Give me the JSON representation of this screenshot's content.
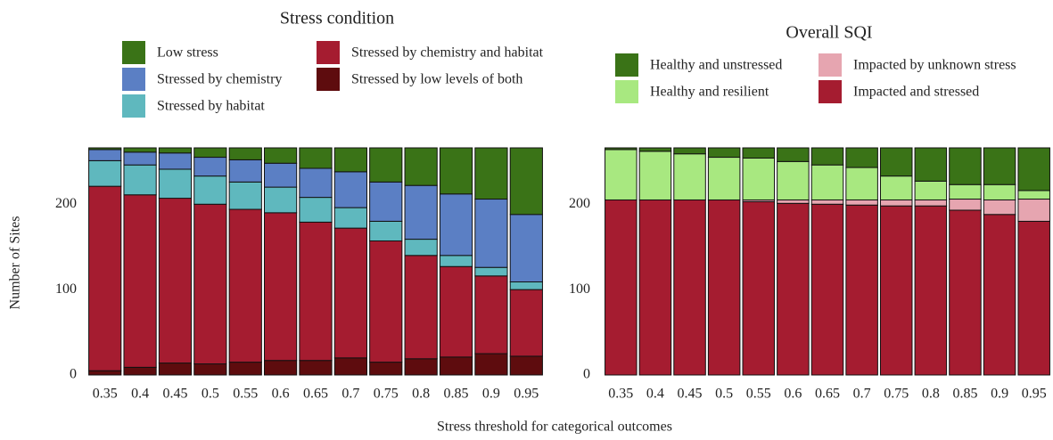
{
  "chart_data": [
    {
      "type": "stacked_bar",
      "legend_title": "Stress condition",
      "ylabel": "Number of Sites",
      "xlabel": "Stress threshold for categorical outcomes",
      "categories": [
        "0.35",
        "0.4",
        "0.45",
        "0.5",
        "0.55",
        "0.6",
        "0.65",
        "0.7",
        "0.75",
        "0.8",
        "0.85",
        "0.9",
        "0.95"
      ],
      "series": [
        {
          "name": "Low stress",
          "color": "#3a7317",
          "values": [
            2,
            5,
            6,
            11,
            14,
            18,
            24,
            28,
            40,
            44,
            54,
            60,
            78
          ]
        },
        {
          "name": "Stressed by chemistry",
          "color": "#5b7fc4",
          "values": [
            13,
            15,
            19,
            22,
            26,
            28,
            34,
            42,
            46,
            63,
            72,
            80,
            79
          ]
        },
        {
          "name": "Stressed by habitat",
          "color": "#5fb8be",
          "values": [
            30,
            35,
            34,
            33,
            32,
            30,
            29,
            24,
            23,
            19,
            13,
            10,
            9
          ]
        },
        {
          "name": "Stressed by chemistry and habitat",
          "color": "#a51c30",
          "values": [
            216,
            202,
            193,
            187,
            179,
            173,
            162,
            152,
            142,
            121,
            106,
            91,
            78
          ]
        },
        {
          "name": "Stressed by low levels of both",
          "color": "#5e0c0e",
          "values": [
            5,
            9,
            14,
            13,
            15,
            17,
            17,
            20,
            15,
            19,
            21,
            25,
            22
          ]
        }
      ],
      "ylim": [
        0,
        266
      ],
      "yticks": [
        0,
        100,
        200
      ]
    },
    {
      "type": "stacked_bar",
      "legend_title": "Overall SQI",
      "categories": [
        "0.35",
        "0.4",
        "0.45",
        "0.5",
        "0.55",
        "0.6",
        "0.65",
        "0.7",
        "0.75",
        "0.8",
        "0.85",
        "0.9",
        "0.95"
      ],
      "series": [
        {
          "name": "Healthy and unstressed",
          "color": "#3a7317",
          "values": [
            2,
            4,
            7,
            11,
            12,
            16,
            20,
            23,
            33,
            39,
            43,
            43,
            50
          ]
        },
        {
          "name": "Healthy and resilient",
          "color": "#a8e880",
          "values": [
            59,
            57,
            54,
            50,
            49,
            45,
            41,
            38,
            28,
            22,
            17,
            18,
            10
          ]
        },
        {
          "name": "Impacted by unknown stress",
          "color": "#e6a5b0",
          "values": [
            0,
            0,
            0,
            0,
            2,
            4,
            5,
            6,
            7,
            7,
            13,
            17,
            26
          ]
        },
        {
          "name": "Impacted and stressed",
          "color": "#a51c30",
          "values": [
            205,
            205,
            205,
            205,
            203,
            201,
            200,
            199,
            198,
            198,
            193,
            188,
            180
          ]
        }
      ],
      "ylim": [
        0,
        266
      ],
      "yticks": [
        0,
        100,
        200
      ]
    }
  ]
}
